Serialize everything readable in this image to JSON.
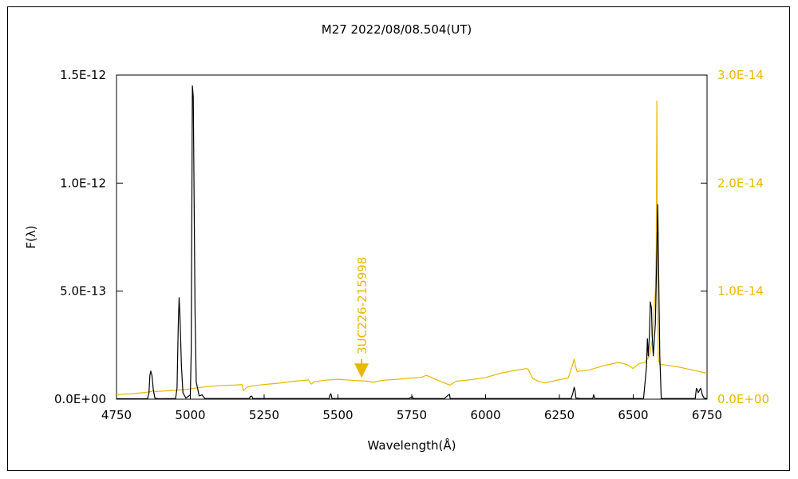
{
  "chart_data": {
    "type": "line",
    "title": "M27   2022/08/08.504(UT)",
    "xlabel": "Wavelength(Å)",
    "ylabel": "F(λ)",
    "y2label": "",
    "xlim": [
      4750,
      6750
    ],
    "ylim": [
      0,
      1.5e-12
    ],
    "y2lim": [
      0,
      3e-14
    ],
    "x_ticks": [
      {
        "value": 4750,
        "label": "4750"
      },
      {
        "value": 5000,
        "label": "5000"
      },
      {
        "value": 5250,
        "label": "5250"
      },
      {
        "value": 5500,
        "label": "5500"
      },
      {
        "value": 5750,
        "label": "5750"
      },
      {
        "value": 6000,
        "label": "6000"
      },
      {
        "value": 6250,
        "label": "6250"
      },
      {
        "value": 6500,
        "label": "6500"
      },
      {
        "value": 6750,
        "label": "6750"
      }
    ],
    "y_ticks": [
      {
        "value": 0,
        "label": "0.0E+00"
      },
      {
        "value": 5e-13,
        "label": "5.0E-13"
      },
      {
        "value": 1e-12,
        "label": "1.0E-12"
      },
      {
        "value": 1.5e-12,
        "label": "1.5E-12"
      }
    ],
    "y2_ticks": [
      {
        "value": 0,
        "label": "0.0E+00"
      },
      {
        "value": 1e-14,
        "label": "1.0E-14"
      },
      {
        "value": 2e-14,
        "label": "2.0E-14"
      },
      {
        "value": 3e-14,
        "label": "3.0E-14"
      }
    ],
    "grid": false,
    "colors": {
      "nebula": "#000000",
      "star": "#e6b800",
      "axis": "#000000"
    },
    "series": [
      {
        "color": "#000000",
        "axis": "left",
        "x": [
          4750,
          4855,
          4860,
          4863,
          4866,
          4870,
          4875,
          4880,
          4890,
          4950,
          4955,
          4959,
          4962,
          4965,
          4970,
          4975,
          4985,
          5000,
          5003,
          5007,
          5010,
          5013,
          5016,
          5020,
          5030,
          5040,
          5045,
          5050,
          5200,
          5203,
          5208,
          5212,
          5470,
          5473,
          5476,
          5480,
          5740,
          5750,
          5752,
          5755,
          5860,
          5875,
          5878,
          5880,
          6290,
          6296,
          6300,
          6303,
          6306,
          6320,
          6363,
          6366,
          6370,
          6535,
          6545,
          6548,
          6551,
          6555,
          6558,
          6562,
          6564,
          6568,
          6575,
          6580,
          6583,
          6586,
          6590,
          6595,
          6710,
          6714,
          6717,
          6720,
          6728,
          6731,
          6734,
          6740,
          6750
        ],
        "values": [
          2e-15,
          2e-15,
          3e-14,
          1.1e-13,
          1.3e-13,
          1.1e-13,
          4e-14,
          5e-15,
          2e-15,
          3e-15,
          5e-14,
          3.3e-13,
          4.7e-13,
          3.8e-13,
          1.5e-13,
          3e-14,
          5e-15,
          2e-14,
          2.2e-13,
          1.45e-12,
          1.4e-12,
          9e-13,
          4e-13,
          8e-14,
          1.5e-14,
          2e-14,
          1e-14,
          3e-15,
          3e-15,
          1.2e-14,
          1.4e-14,
          3e-15,
          3e-15,
          2e-14,
          2.5e-14,
          3e-15,
          3e-15,
          1e-14,
          1.2e-14,
          3e-15,
          3e-15,
          2e-14,
          2.2e-14,
          3e-15,
          3e-15,
          3e-14,
          5.5e-14,
          4e-14,
          5e-15,
          3e-15,
          3e-15,
          2e-14,
          3e-15,
          3e-15,
          1.5e-13,
          2.8e-13,
          2e-13,
          3e-13,
          4.5e-13,
          4.2e-13,
          3e-13,
          2e-13,
          3.5e-13,
          6.8e-13,
          9e-13,
          6e-13,
          2e-13,
          3e-15,
          3e-15,
          5e-14,
          4.5e-14,
          3e-14,
          5e-14,
          4e-14,
          2e-14,
          5e-15,
          3e-15
        ]
      },
      {
        "color": "#e6b800",
        "axis": "right",
        "x": [
          4750,
          4800,
          4850,
          4870,
          4875,
          4880,
          4900,
          4960,
          4965,
          4970,
          5000,
          5010,
          5050,
          5100,
          5150,
          5175,
          5180,
          5190,
          5200,
          5250,
          5300,
          5350,
          5400,
          5410,
          5420,
          5450,
          5500,
          5550,
          5600,
          5620,
          5650,
          5700,
          5750,
          5780,
          5800,
          5830,
          5870,
          5880,
          5900,
          5950,
          6000,
          6050,
          6100,
          6140,
          6145,
          6160,
          6180,
          6200,
          6250,
          6280,
          6295,
          6300,
          6305,
          6310,
          6350,
          6400,
          6450,
          6480,
          6500,
          6520,
          6540,
          6555,
          6560,
          6565,
          6570,
          6575,
          6578,
          6580,
          6582,
          6585,
          6590,
          6600,
          6650,
          6700,
          6750
        ],
        "values": [
          4.2e-16,
          5e-16,
          6.3e-16,
          7.2e-16,
          8.1e-16,
          7e-16,
          7.4e-16,
          8.3e-16,
          9e-16,
          8.5e-16,
          9.5e-16,
          1e-15,
          1.14e-15,
          1.26e-15,
          1.3e-15,
          1.36e-15,
          8e-16,
          1.06e-15,
          1.18e-15,
          1.36e-15,
          1.48e-15,
          1.66e-15,
          1.78e-15,
          1.4e-15,
          1.6e-15,
          1.74e-15,
          1.84e-15,
          1.74e-15,
          1.66e-15,
          1.56e-15,
          1.74e-15,
          1.84e-15,
          1.96e-15,
          2e-15,
          2.2e-15,
          1.84e-15,
          1.4e-15,
          1.3e-15,
          1.66e-15,
          1.8e-15,
          2e-15,
          2.4e-15,
          2.66e-15,
          2.84e-15,
          2.72e-15,
          1.9e-15,
          1.66e-15,
          1.5e-15,
          1.8e-15,
          1.96e-15,
          3.2e-15,
          3.7e-15,
          3e-15,
          2.56e-15,
          2.7e-15,
          3.1e-15,
          3.4e-15,
          3.2e-15,
          2.84e-15,
          3.3e-15,
          3.4e-15,
          4e-15,
          4.8e-15,
          5.6e-15,
          8e-15,
          1e-14,
          1.4e-14,
          2.76e-14,
          1e-14,
          3.8e-15,
          3.2e-15,
          3.2e-15,
          3e-15,
          2.7e-15,
          2.4e-15
        ]
      }
    ],
    "annotations": [
      {
        "text": "3UC226-215998",
        "x": 5580,
        "axis": "right",
        "y_tip": 1.98e-15,
        "y_tail": 3.7e-15,
        "color": "#e6b800"
      }
    ]
  }
}
